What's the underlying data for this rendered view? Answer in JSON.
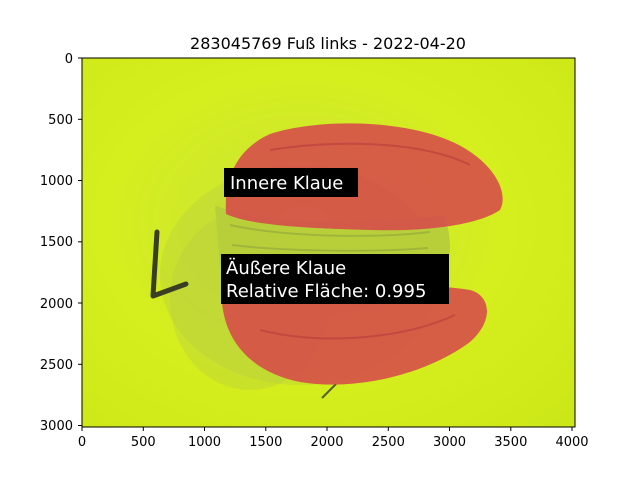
{
  "figure": {
    "title": "283045769 Fuß links - 2022-04-20",
    "x_ticks": [
      "0",
      "500",
      "1000",
      "1500",
      "2000",
      "2500",
      "3000",
      "3500",
      "4000"
    ],
    "y_ticks": [
      "0",
      "500",
      "1000",
      "1500",
      "2000",
      "2500",
      "3000"
    ],
    "annotations": {
      "inner_claw": "Innere Klaue",
      "outer_claw_line1": "Äußere Klaue",
      "outer_claw_line2": "Relative Fläche: 0.995"
    }
  },
  "colors": {
    "background_mat": "#d2ec1a",
    "claw_overlay": "#d64a4a",
    "label_box": "#000000"
  },
  "icons": {
    "overlay": "segmentation-mask"
  }
}
